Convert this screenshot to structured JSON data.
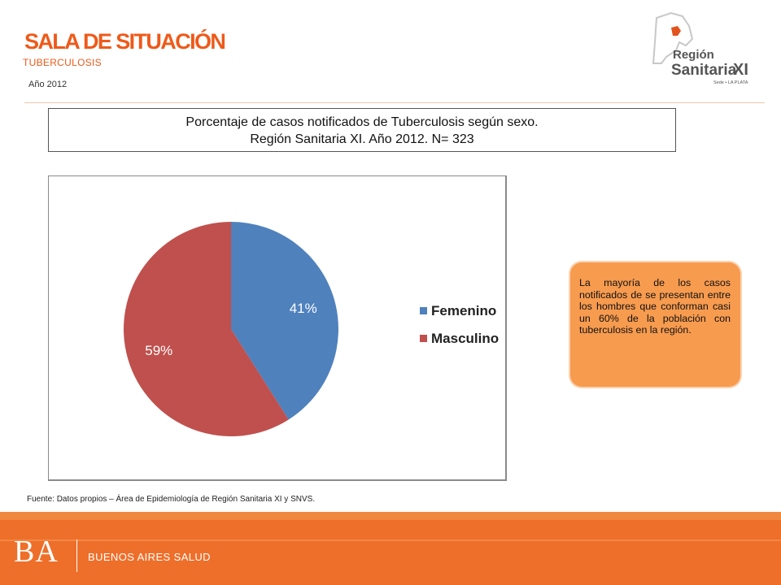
{
  "header": {
    "title": "SALA DE SITUACIÓN",
    "subtitle": "TUBERCULOSIS",
    "year": "Año 2012"
  },
  "logo": {
    "line1": "Región",
    "line2": "Sanitaria",
    "numeral": "XI",
    "tagline": "Sede • LA PLATA",
    "colors": {
      "text": "#555555",
      "accent": "#e2531d"
    }
  },
  "chart_title": {
    "line1": "Porcentaje de casos notificados de Tuberculosis  según sexo.",
    "line2": "Región Sanitaria XI. Año 2012. N= 323"
  },
  "chart_data": {
    "type": "pie",
    "categories": [
      "Femenino",
      "Masculino"
    ],
    "values": [
      41,
      59
    ],
    "value_labels": [
      "41%",
      "59%"
    ],
    "colors": [
      "#4f81bd",
      "#c0504d"
    ],
    "legend_position": "right"
  },
  "callout": {
    "text": "La mayoría de los casos notificados de se presentan entre los hombres que conforman casi un 60% de la población con tuberculosis en la región."
  },
  "source": "Fuente: Datos propios – Área de Epidemiología de Región Sanitaria XI y SNVS.",
  "footer": {
    "ba": "BA",
    "label": "BUENOS AIRES SALUD"
  }
}
